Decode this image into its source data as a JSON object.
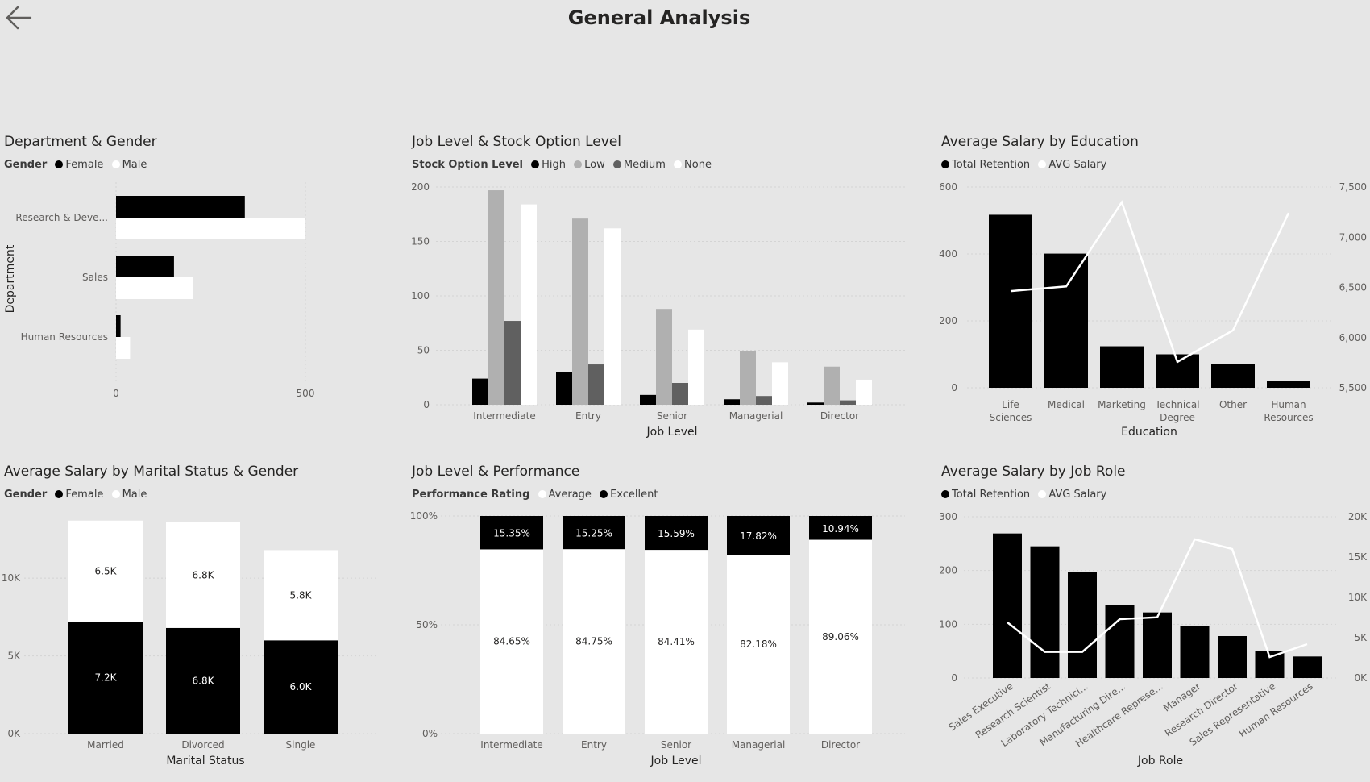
{
  "page": {
    "title": "General Analysis",
    "back_icon": "arrow-left-icon"
  },
  "colors": {
    "background": "#e6e6e6",
    "black": "#000000",
    "white": "#ffffff",
    "dark_gray": "#606060",
    "light_gray": "#b0b0b0"
  },
  "panels": {
    "dept": {
      "title": "Department & Gender",
      "legend_title": "Gender",
      "legend": [
        "Female",
        "Male"
      ]
    },
    "stock": {
      "title": "Job Level & Stock Option Level",
      "legend_title": "Stock Option Level",
      "legend": [
        "High",
        "Low",
        "Medium",
        "None"
      ]
    },
    "edu": {
      "title": "Average Salary by Education",
      "legend": [
        "Total Retention",
        "AVG Salary"
      ]
    },
    "marital": {
      "title": "Average Salary by Marital Status & Gender",
      "legend_title": "Gender",
      "legend": [
        "Female",
        "Male"
      ]
    },
    "perf": {
      "title": "Job Level & Performance",
      "legend_title": "Performance Rating",
      "legend": [
        "Average",
        "Excellent"
      ]
    },
    "role": {
      "title": "Average Salary by Job Role",
      "legend": [
        "Total Retention",
        "AVG Salary"
      ]
    }
  },
  "chart_data": [
    {
      "id": "dept",
      "type": "bar",
      "orientation": "horizontal",
      "title": "Department & Gender",
      "categories": [
        "Research & Deve...",
        "Sales",
        "Human Resources"
      ],
      "series": [
        {
          "name": "Female",
          "values": [
            340,
            153,
            12
          ]
        },
        {
          "name": "Male",
          "values": [
            500,
            204,
            37
          ]
        }
      ],
      "xlabel": "",
      "ylabel": "Department",
      "xlim": [
        0,
        500
      ],
      "xticks": [
        "0",
        "500"
      ]
    },
    {
      "id": "stock",
      "type": "bar",
      "title": "Job Level & Stock Option Level",
      "categories": [
        "Intermediate",
        "Entry",
        "Senior",
        "Managerial",
        "Director"
      ],
      "series": [
        {
          "name": "High",
          "values": [
            24,
            30,
            9,
            5,
            2
          ]
        },
        {
          "name": "Low",
          "values": [
            197,
            171,
            88,
            49,
            35
          ]
        },
        {
          "name": "Medium",
          "values": [
            77,
            37,
            20,
            8,
            4
          ]
        },
        {
          "name": "None",
          "values": [
            184,
            162,
            69,
            39,
            23
          ]
        }
      ],
      "xlabel": "Job Level",
      "ylabel": "",
      "ylim": [
        0,
        200
      ],
      "yticks": [
        "0",
        "50",
        "100",
        "150",
        "200"
      ]
    },
    {
      "id": "edu",
      "type": "bar",
      "title": "Average Salary by Education",
      "categories": [
        "Life Sciences",
        "Medical",
        "Marketing",
        "Technical Degree",
        "Other",
        "Human Resources"
      ],
      "series": [
        {
          "name": "Total Retention",
          "values": [
            517,
            401,
            124,
            100,
            71,
            20
          ]
        },
        {
          "name": "AVG Salary",
          "type": "line",
          "axis": "right",
          "values": [
            6463,
            6510,
            7348,
            5758,
            6072,
            7242
          ]
        }
      ],
      "xlabel": "Education",
      "ylabel": "",
      "ylim": [
        0,
        600
      ],
      "y2lim": [
        5500,
        7500
      ],
      "yticks": [
        "0",
        "200",
        "400",
        "600"
      ],
      "y2ticks": [
        "5,500",
        "6,000",
        "6,500",
        "7,000",
        "7,500"
      ]
    },
    {
      "id": "marital",
      "type": "bar",
      "stacked": true,
      "title": "Average Salary by Marital Status & Gender",
      "categories": [
        "Married",
        "Divorced",
        "Single"
      ],
      "series": [
        {
          "name": "Female",
          "values": [
            7200,
            6800,
            6000
          ],
          "labels": [
            "7.2K",
            "6.8K",
            "6.0K"
          ]
        },
        {
          "name": "Male",
          "values": [
            6500,
            6800,
            5800
          ],
          "labels": [
            "6.5K",
            "6.8K",
            "5.8K"
          ]
        }
      ],
      "xlabel": "Marital Status",
      "ylabel": "",
      "ylim": [
        0,
        14000
      ],
      "yticks": [
        "0K",
        "5K",
        "10K"
      ]
    },
    {
      "id": "perf",
      "type": "bar",
      "stacked": true,
      "percent": true,
      "title": "Job Level & Performance",
      "categories": [
        "Intermediate",
        "Entry",
        "Senior",
        "Managerial",
        "Director"
      ],
      "series": [
        {
          "name": "Average",
          "values": [
            84.65,
            84.75,
            84.41,
            82.18,
            89.06
          ],
          "labels": [
            "84.65%",
            "84.75%",
            "84.41%",
            "82.18%",
            "89.06%"
          ]
        },
        {
          "name": "Excellent",
          "values": [
            15.35,
            15.25,
            15.59,
            17.82,
            10.94
          ],
          "labels": [
            "15.35%",
            "15.25%",
            "15.59%",
            "17.82%",
            "10.94%"
          ]
        }
      ],
      "xlabel": "Job Level",
      "ylabel": "",
      "ylim": [
        0,
        100
      ],
      "yticks": [
        "0%",
        "50%",
        "100%"
      ]
    },
    {
      "id": "role",
      "type": "bar",
      "title": "Average Salary by Job Role",
      "categories": [
        "Sales Executive",
        "Research Scientist",
        "Laboratory Technici...",
        "Manufacturing Dire...",
        "Healthcare Represe...",
        "Manager",
        "Research Director",
        "Sales Representative",
        "Human Resources"
      ],
      "series": [
        {
          "name": "Total Retention",
          "values": [
            269,
            245,
            197,
            135,
            122,
            97,
            78,
            50,
            40
          ]
        },
        {
          "name": "AVG Salary",
          "type": "line",
          "axis": "right",
          "values": [
            6900,
            3240,
            3240,
            7300,
            7530,
            17200,
            16000,
            2600,
            4200
          ]
        }
      ],
      "xlabel": "Job Role",
      "ylabel": "",
      "ylim": [
        0,
        300
      ],
      "y2lim": [
        0,
        20000
      ],
      "yticks": [
        "0",
        "100",
        "200",
        "300"
      ],
      "y2ticks": [
        "0K",
        "5K",
        "10K",
        "15K",
        "20K"
      ]
    }
  ]
}
